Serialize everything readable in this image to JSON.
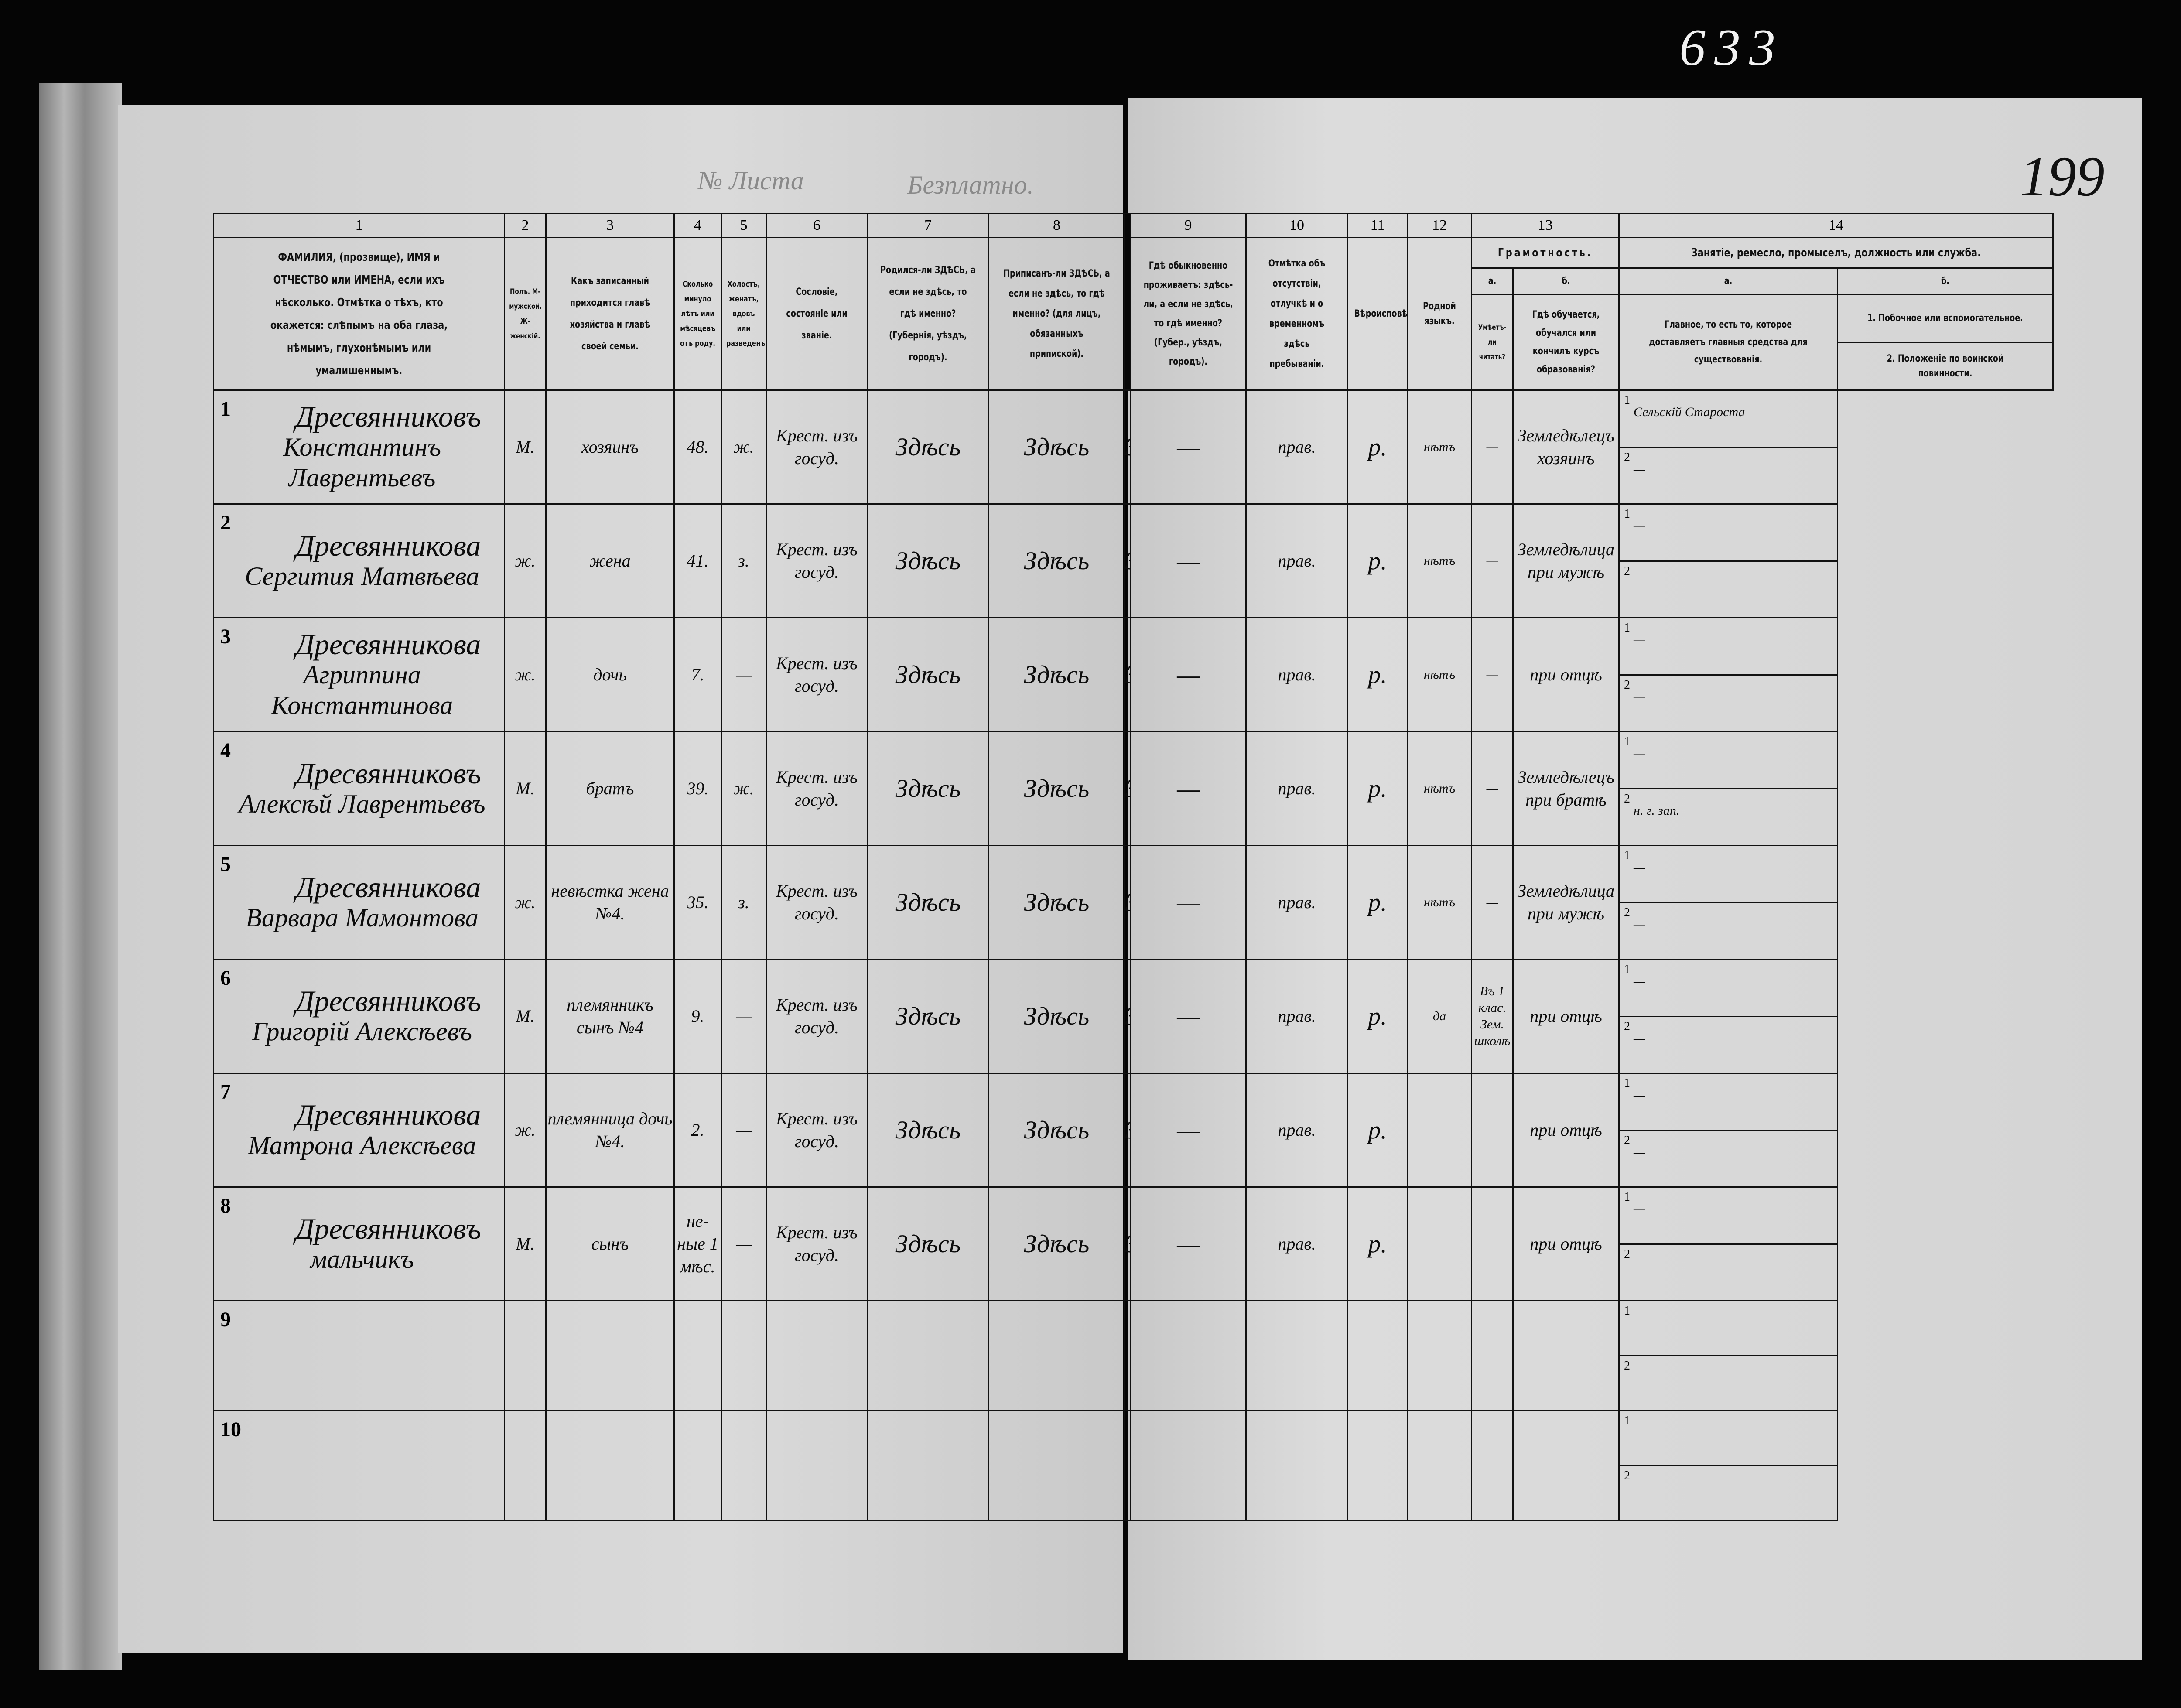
{
  "archive_number": "633",
  "sheet_number": "199",
  "faint_print": {
    "free": "Безплатно.",
    "sheet_label": "№ Листа"
  },
  "header": {
    "col_numbers": [
      "1",
      "2",
      "3",
      "4",
      "5",
      "6",
      "7",
      "8",
      "9",
      "10",
      "11",
      "12",
      "13",
      "14"
    ],
    "c1": "ФАМИЛИЯ, (прозвище), ИМЯ и ОТЧЕСТВО или ИМЕНА, если ихъ нѣсколько. Отмѣтка о тѣхъ, кто окажется: слѣпымъ на оба глаза, нѣмымъ, глухонѣмымъ или умалишеннымъ.",
    "c2": "Полъ. М-мужской. Ж-женскій.",
    "c3": "Какъ записанный приходится главѣ хозяйства и главѣ своей семьи.",
    "c4": "Сколько минуло лѣтъ или мѣсяцевъ отъ роду.",
    "c5": "Холостъ, женатъ, вдовъ или разведенъ.",
    "c6": "Сословіе, состояніе или званіе.",
    "c7": "Родился-ли ЗДѢСЬ, а если не здѣсь, то гдѣ именно? (Губернія, уѣздъ, городъ).",
    "c8": "Приписанъ-ли ЗДѢСЬ, а если не здѣсь, то гдѣ именно? (для лицъ, обязанныхъ припиской).",
    "c9": "Гдѣ обыкновенно проживаетъ: здѣсь-ли, а если не здѣсь, то гдѣ именно? (Губер., уѣздъ, городъ).",
    "c10": "Отмѣтка объ отсутствіи, отлучкѣ и о временномъ здѣсь пребываніи.",
    "c11": "Вѣроисповѣданіе.",
    "c12": "Родной языкъ.",
    "c13": "Грамотность.",
    "c13a_letter": "а.",
    "c13b_letter": "б.",
    "c13a": "Умѣетъ-ли читать?",
    "c13b": "Гдѣ обучается, обучался или кончилъ курсъ образованія?",
    "c14": "Занятіе, ремесло, промыселъ, должность или служба.",
    "c14a_letter": "а.",
    "c14b_letter": "б.",
    "c14a": "Главное, то есть то, которое доставляетъ главныя средства для существованія.",
    "c14b_1": "1. Побочное или вспомогательное.",
    "c14b_2": "2. Положеніе по воинской повинности."
  },
  "rows": [
    {
      "num": "1",
      "surname": "Дресвянниковъ",
      "given": "Константинъ Лаврентьевъ",
      "sex": "М.",
      "relation": "хозяинъ",
      "age": "48.",
      "marital": "ж.",
      "estate": "Крест. изъ госуд.",
      "born": "Здѣсь",
      "registered": "Здѣсь",
      "residence": "Здѣсь",
      "absence": "—",
      "religion": "прав.",
      "language": "р.",
      "literate": "нѣтъ",
      "education": "—",
      "occupation": "Земледѣлецъ хозяинъ",
      "occ_side": "Сельскій Староста",
      "military": "—"
    },
    {
      "num": "2",
      "surname": "Дресвянникова",
      "given": "Сергития Матвѣева",
      "sex": "ж.",
      "relation": "жена",
      "age": "41.",
      "marital": "з.",
      "estate": "Крест. изъ госуд.",
      "born": "Здѣсь",
      "registered": "Здѣсь",
      "residence": "Здѣсь",
      "absence": "—",
      "religion": "прав.",
      "language": "р.",
      "literate": "нѣтъ",
      "education": "—",
      "occupation": "Земледѣлица при мужѣ",
      "occ_side": "—",
      "military": "—"
    },
    {
      "num": "3",
      "surname": "Дресвянникова",
      "given": "Агриппина Константинова",
      "sex": "ж.",
      "relation": "дочь",
      "age": "7.",
      "marital": "—",
      "estate": "Крест. изъ госуд.",
      "born": "Здѣсь",
      "registered": "Здѣсь",
      "residence": "Здѣсь",
      "absence": "—",
      "religion": "прав.",
      "language": "р.",
      "literate": "нѣтъ",
      "education": "—",
      "occupation": "при отцѣ",
      "occ_side": "—",
      "military": "—"
    },
    {
      "num": "4",
      "surname": "Дресвянниковъ",
      "given": "Алексѣй Лаврентьевъ",
      "sex": "М.",
      "relation": "братъ",
      "age": "39.",
      "marital": "ж.",
      "estate": "Крест. изъ госуд.",
      "born": "Здѣсь",
      "registered": "Здѣсь",
      "residence": "Здѣсь",
      "absence": "—",
      "religion": "прав.",
      "language": "р.",
      "literate": "нѣтъ",
      "education": "—",
      "occupation": "Земледѣлецъ при братѣ",
      "occ_side": "—",
      "military": "н. г. зап."
    },
    {
      "num": "5",
      "surname": "Дресвянникова",
      "given": "Варвара Мамонтова",
      "sex": "ж.",
      "relation": "невѣстка жена №4.",
      "age": "35.",
      "marital": "з.",
      "estate": "Крест. изъ госуд.",
      "born": "Здѣсь",
      "registered": "Здѣсь",
      "residence": "Здѣсь",
      "absence": "—",
      "religion": "прав.",
      "language": "р.",
      "literate": "нѣтъ",
      "education": "—",
      "occupation": "Земледѣлица при мужѣ",
      "occ_side": "—",
      "military": "—"
    },
    {
      "num": "6",
      "surname": "Дресвянниковъ",
      "given": "Григорій Алексѣевъ",
      "sex": "М.",
      "relation": "племянникъ сынъ №4",
      "age": "9.",
      "marital": "—",
      "estate": "Крест. изъ госуд.",
      "born": "Здѣсь",
      "registered": "Здѣсь",
      "residence": "Здѣсь",
      "absence": "—",
      "religion": "прав.",
      "language": "р.",
      "literate": "да",
      "education": "Въ 1 клас. Зем. школѣ",
      "occupation": "при отцѣ",
      "occ_side": "—",
      "military": "—"
    },
    {
      "num": "7",
      "surname": "Дресвянникова",
      "given": "Матрона Алексѣева",
      "sex": "ж.",
      "relation": "племянница дочь №4.",
      "age": "2.",
      "marital": "—",
      "estate": "Крест. изъ госуд.",
      "born": "Здѣсь",
      "registered": "Здѣсь",
      "residence": "Здѣсь",
      "absence": "—",
      "religion": "прав.",
      "language": "р.",
      "literate": "",
      "education": "—",
      "occupation": "при отцѣ",
      "occ_side": "—",
      "military": "—"
    },
    {
      "num": "8",
      "surname": "Дресвянниковъ",
      "given": "мальчикъ",
      "sex": "М.",
      "relation": "сынъ",
      "age": "не- ные 1 мѣс.",
      "marital": "—",
      "estate": "Крест. изъ госуд.",
      "born": "Здѣсь",
      "registered": "Здѣсь",
      "residence": "Здѣсь",
      "absence": "—",
      "religion": "прав.",
      "language": "р.",
      "literate": "",
      "education": "",
      "occupation": "при отцѣ",
      "occ_side": "—",
      "military": ""
    },
    {
      "num": "9",
      "surname": "",
      "given": "",
      "sex": "",
      "relation": "",
      "age": "",
      "marital": "",
      "estate": "",
      "born": "",
      "registered": "",
      "residence": "",
      "absence": "",
      "religion": "",
      "language": "",
      "literate": "",
      "education": "",
      "occupation": "",
      "occ_side": "",
      "military": ""
    },
    {
      "num": "10",
      "surname": "",
      "given": "",
      "sex": "",
      "relation": "",
      "age": "",
      "marital": "",
      "estate": "",
      "born": "",
      "registered": "",
      "residence": "",
      "absence": "",
      "religion": "",
      "language": "",
      "literate": "",
      "education": "",
      "occupation": "",
      "occ_side": "",
      "military": ""
    }
  ],
  "sub_labels": [
    "1",
    "2"
  ]
}
